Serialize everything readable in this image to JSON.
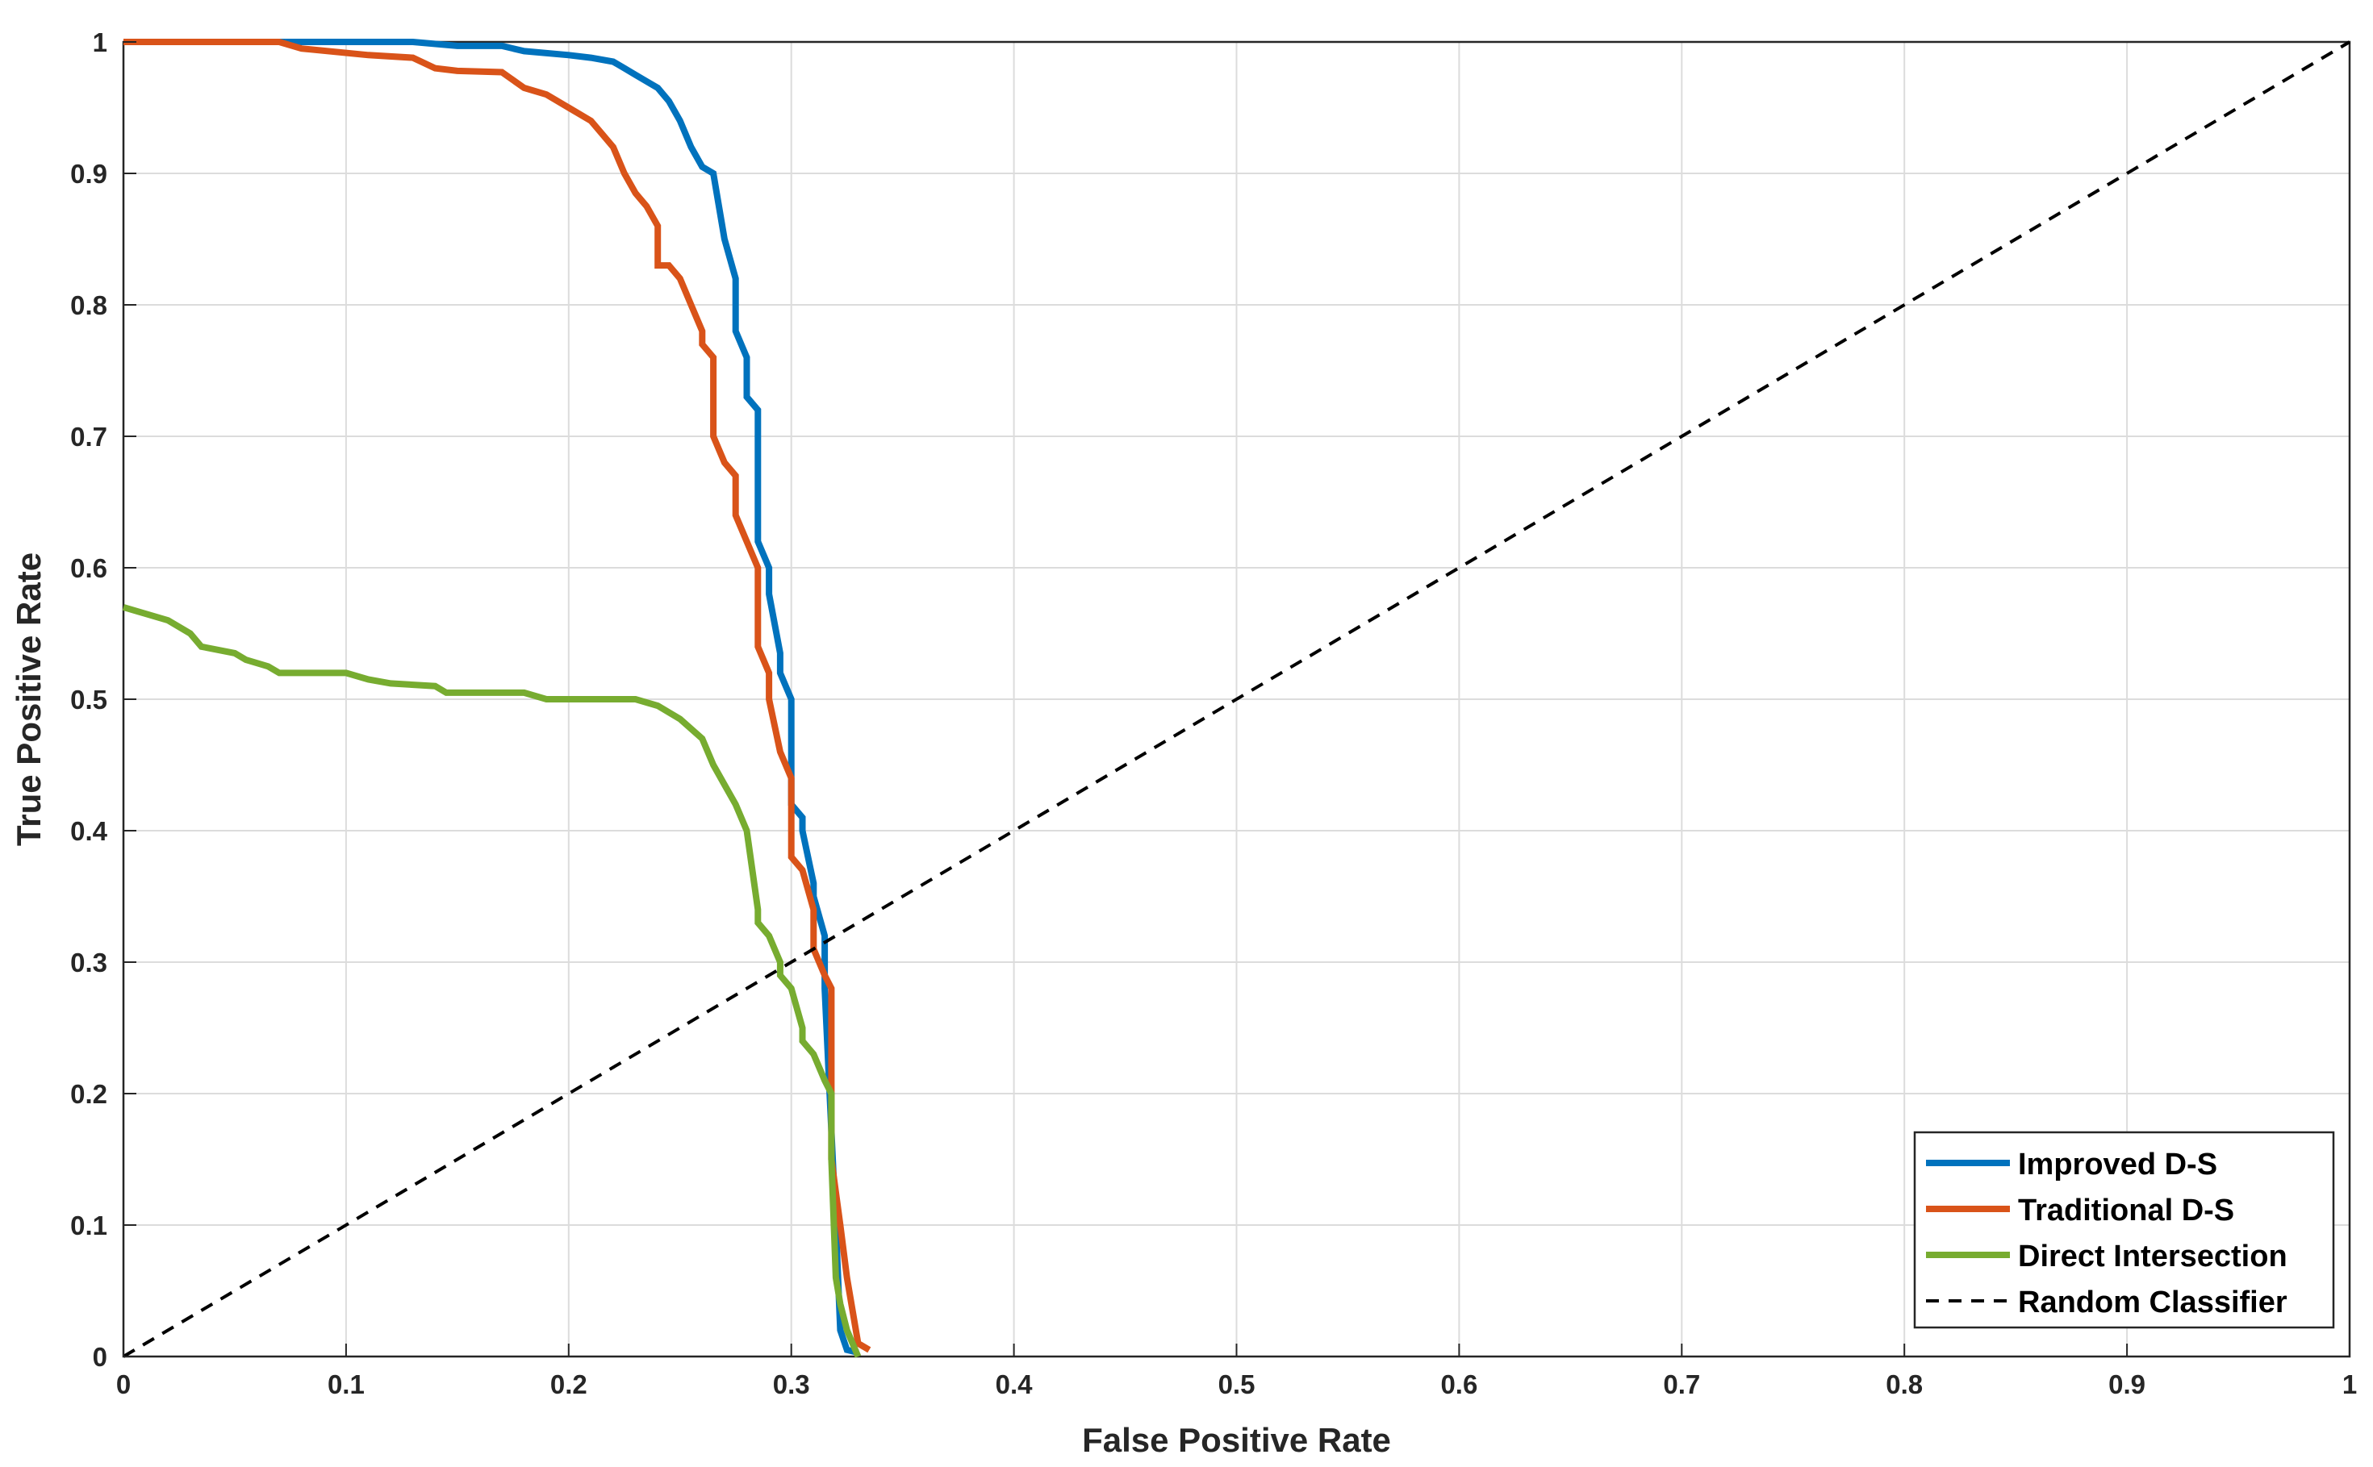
{
  "chart_data": {
    "type": "line",
    "title": "",
    "xlabel": "False Positive Rate",
    "ylabel": "True Positive Rate",
    "xlim": [
      0,
      1
    ],
    "ylim": [
      0,
      1
    ],
    "xticks": [
      "0",
      "0.1",
      "0.2",
      "0.3",
      "0.4",
      "0.5",
      "0.6",
      "0.7",
      "0.8",
      "0.9",
      "1"
    ],
    "yticks": [
      "0",
      "0.1",
      "0.2",
      "0.3",
      "0.4",
      "0.5",
      "0.6",
      "0.7",
      "0.8",
      "0.9",
      "1"
    ],
    "grid": true,
    "legend_position": "bottom-right",
    "series": [
      {
        "name": "Improved D-S",
        "color": "#0072BD",
        "style": "solid",
        "x": [
          0,
          0.13,
          0.15,
          0.17,
          0.18,
          0.2,
          0.21,
          0.22,
          0.225,
          0.23,
          0.235,
          0.24,
          0.245,
          0.25,
          0.255,
          0.26,
          0.265,
          0.27,
          0.27,
          0.275,
          0.275,
          0.28,
          0.28,
          0.285,
          0.285,
          0.29,
          0.29,
          0.295,
          0.295,
          0.3,
          0.3,
          0.305,
          0.305,
          0.31,
          0.31,
          0.315,
          0.315,
          0.32,
          0.322,
          0.325,
          0.33
        ],
        "y": [
          1,
          1,
          0.997,
          0.997,
          0.993,
          0.99,
          0.988,
          0.985,
          0.98,
          0.975,
          0.97,
          0.965,
          0.955,
          0.94,
          0.92,
          0.905,
          0.9,
          0.85,
          0.85,
          0.82,
          0.78,
          0.76,
          0.73,
          0.72,
          0.62,
          0.6,
          0.58,
          0.535,
          0.52,
          0.5,
          0.42,
          0.41,
          0.4,
          0.36,
          0.35,
          0.32,
          0.28,
          0.1,
          0.02,
          0.005,
          0.003
        ]
      },
      {
        "name": "Traditional D-S",
        "color": "#D95319",
        "style": "solid",
        "x": [
          0,
          0.07,
          0.08,
          0.11,
          0.13,
          0.14,
          0.15,
          0.17,
          0.18,
          0.19,
          0.2,
          0.21,
          0.215,
          0.22,
          0.225,
          0.23,
          0.235,
          0.24,
          0.24,
          0.245,
          0.25,
          0.255,
          0.26,
          0.26,
          0.265,
          0.265,
          0.27,
          0.275,
          0.275,
          0.28,
          0.285,
          0.285,
          0.29,
          0.29,
          0.295,
          0.3,
          0.3,
          0.305,
          0.31,
          0.31,
          0.315,
          0.318,
          0.318,
          0.322,
          0.325,
          0.33,
          0.335
        ],
        "y": [
          1,
          1,
          0.995,
          0.99,
          0.988,
          0.98,
          0.978,
          0.977,
          0.965,
          0.96,
          0.95,
          0.94,
          0.93,
          0.92,
          0.9,
          0.885,
          0.875,
          0.86,
          0.83,
          0.83,
          0.82,
          0.8,
          0.78,
          0.77,
          0.76,
          0.7,
          0.68,
          0.67,
          0.64,
          0.62,
          0.6,
          0.54,
          0.52,
          0.5,
          0.46,
          0.44,
          0.38,
          0.37,
          0.34,
          0.31,
          0.29,
          0.28,
          0.15,
          0.1,
          0.06,
          0.01,
          0.005
        ]
      },
      {
        "name": "Direct Intersection",
        "color": "#77AC30",
        "style": "solid",
        "x": [
          0,
          0.01,
          0.02,
          0.03,
          0.035,
          0.05,
          0.055,
          0.065,
          0.07,
          0.08,
          0.1,
          0.11,
          0.12,
          0.14,
          0.145,
          0.18,
          0.19,
          0.2,
          0.23,
          0.24,
          0.245,
          0.25,
          0.26,
          0.265,
          0.27,
          0.275,
          0.28,
          0.285,
          0.285,
          0.29,
          0.295,
          0.295,
          0.3,
          0.305,
          0.305,
          0.31,
          0.315,
          0.318,
          0.318,
          0.32,
          0.322,
          0.325,
          0.33
        ],
        "y": [
          0.57,
          0.565,
          0.56,
          0.55,
          0.54,
          0.535,
          0.53,
          0.525,
          0.52,
          0.52,
          0.52,
          0.515,
          0.512,
          0.51,
          0.505,
          0.505,
          0.5,
          0.5,
          0.5,
          0.495,
          0.49,
          0.485,
          0.47,
          0.45,
          0.435,
          0.42,
          0.4,
          0.34,
          0.33,
          0.32,
          0.3,
          0.29,
          0.28,
          0.25,
          0.24,
          0.23,
          0.21,
          0.2,
          0.15,
          0.06,
          0.04,
          0.02,
          0.0
        ]
      },
      {
        "name": "Random Classifier",
        "color": "#000000",
        "style": "dashed",
        "x": [
          0,
          1
        ],
        "y": [
          0,
          1
        ]
      }
    ]
  }
}
